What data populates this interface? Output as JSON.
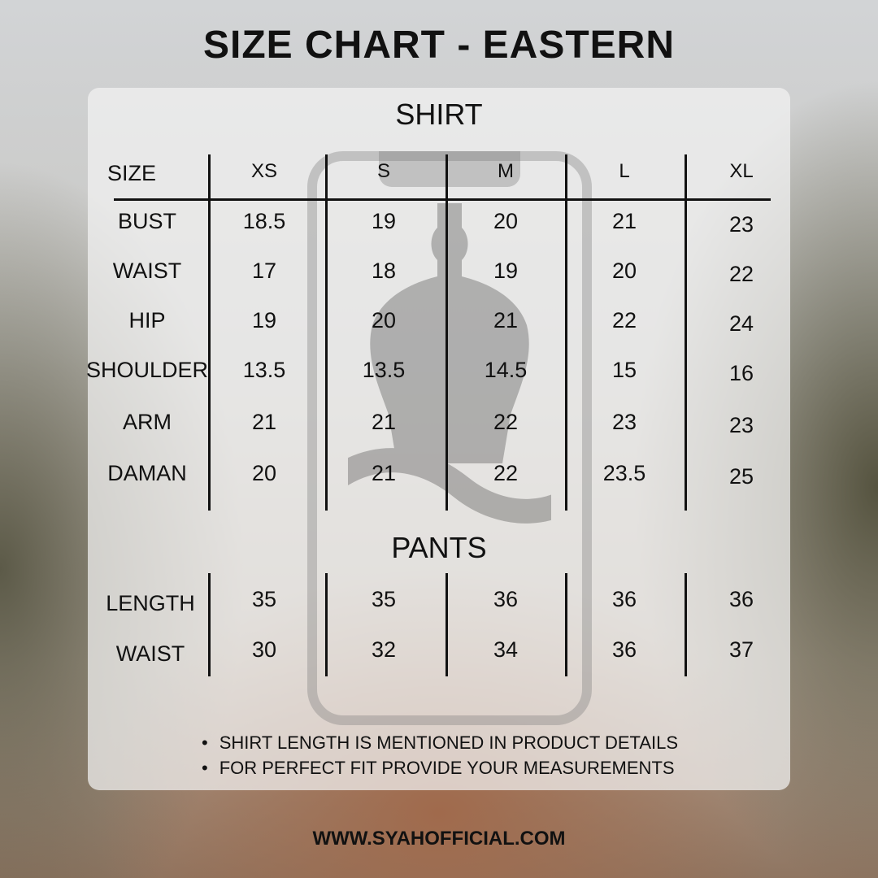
{
  "title": "SIZE CHART - EASTERN",
  "shirt": {
    "heading": "SHIRT",
    "header_label": "SIZE",
    "sizes": [
      "XS",
      "S",
      "M",
      "L",
      "XL"
    ],
    "rows": [
      {
        "label": "BUST",
        "values": [
          "18.5",
          "19",
          "20",
          "21",
          "23"
        ]
      },
      {
        "label": "WAIST",
        "values": [
          "17",
          "18",
          "19",
          "20",
          "22"
        ]
      },
      {
        "label": "HIP",
        "values": [
          "19",
          "20",
          "21",
          "22",
          "24"
        ]
      },
      {
        "label": "SHOULDER",
        "values": [
          "13.5",
          "13.5",
          "14.5",
          "15",
          "16"
        ]
      },
      {
        "label": "ARM",
        "values": [
          "21",
          "21",
          "22",
          "23",
          "23"
        ]
      },
      {
        "label": "DAMAN",
        "values": [
          "20",
          "21",
          "22",
          "23.5",
          "25"
        ]
      }
    ]
  },
  "pants": {
    "heading": "PANTS",
    "rows": [
      {
        "label": "LENGTH",
        "values": [
          "35",
          "35",
          "36",
          "36",
          "36"
        ]
      },
      {
        "label": "WAIST",
        "values": [
          "30",
          "32",
          "34",
          "36",
          "37"
        ]
      }
    ]
  },
  "notes": [
    "SHIRT LENGTH IS MENTIONED IN PRODUCT DETAILS",
    "FOR PERFECT FIT PROVIDE YOUR MEASUREMENTS"
  ],
  "footer": "WWW.SYAHOFFICIAL.COM"
}
